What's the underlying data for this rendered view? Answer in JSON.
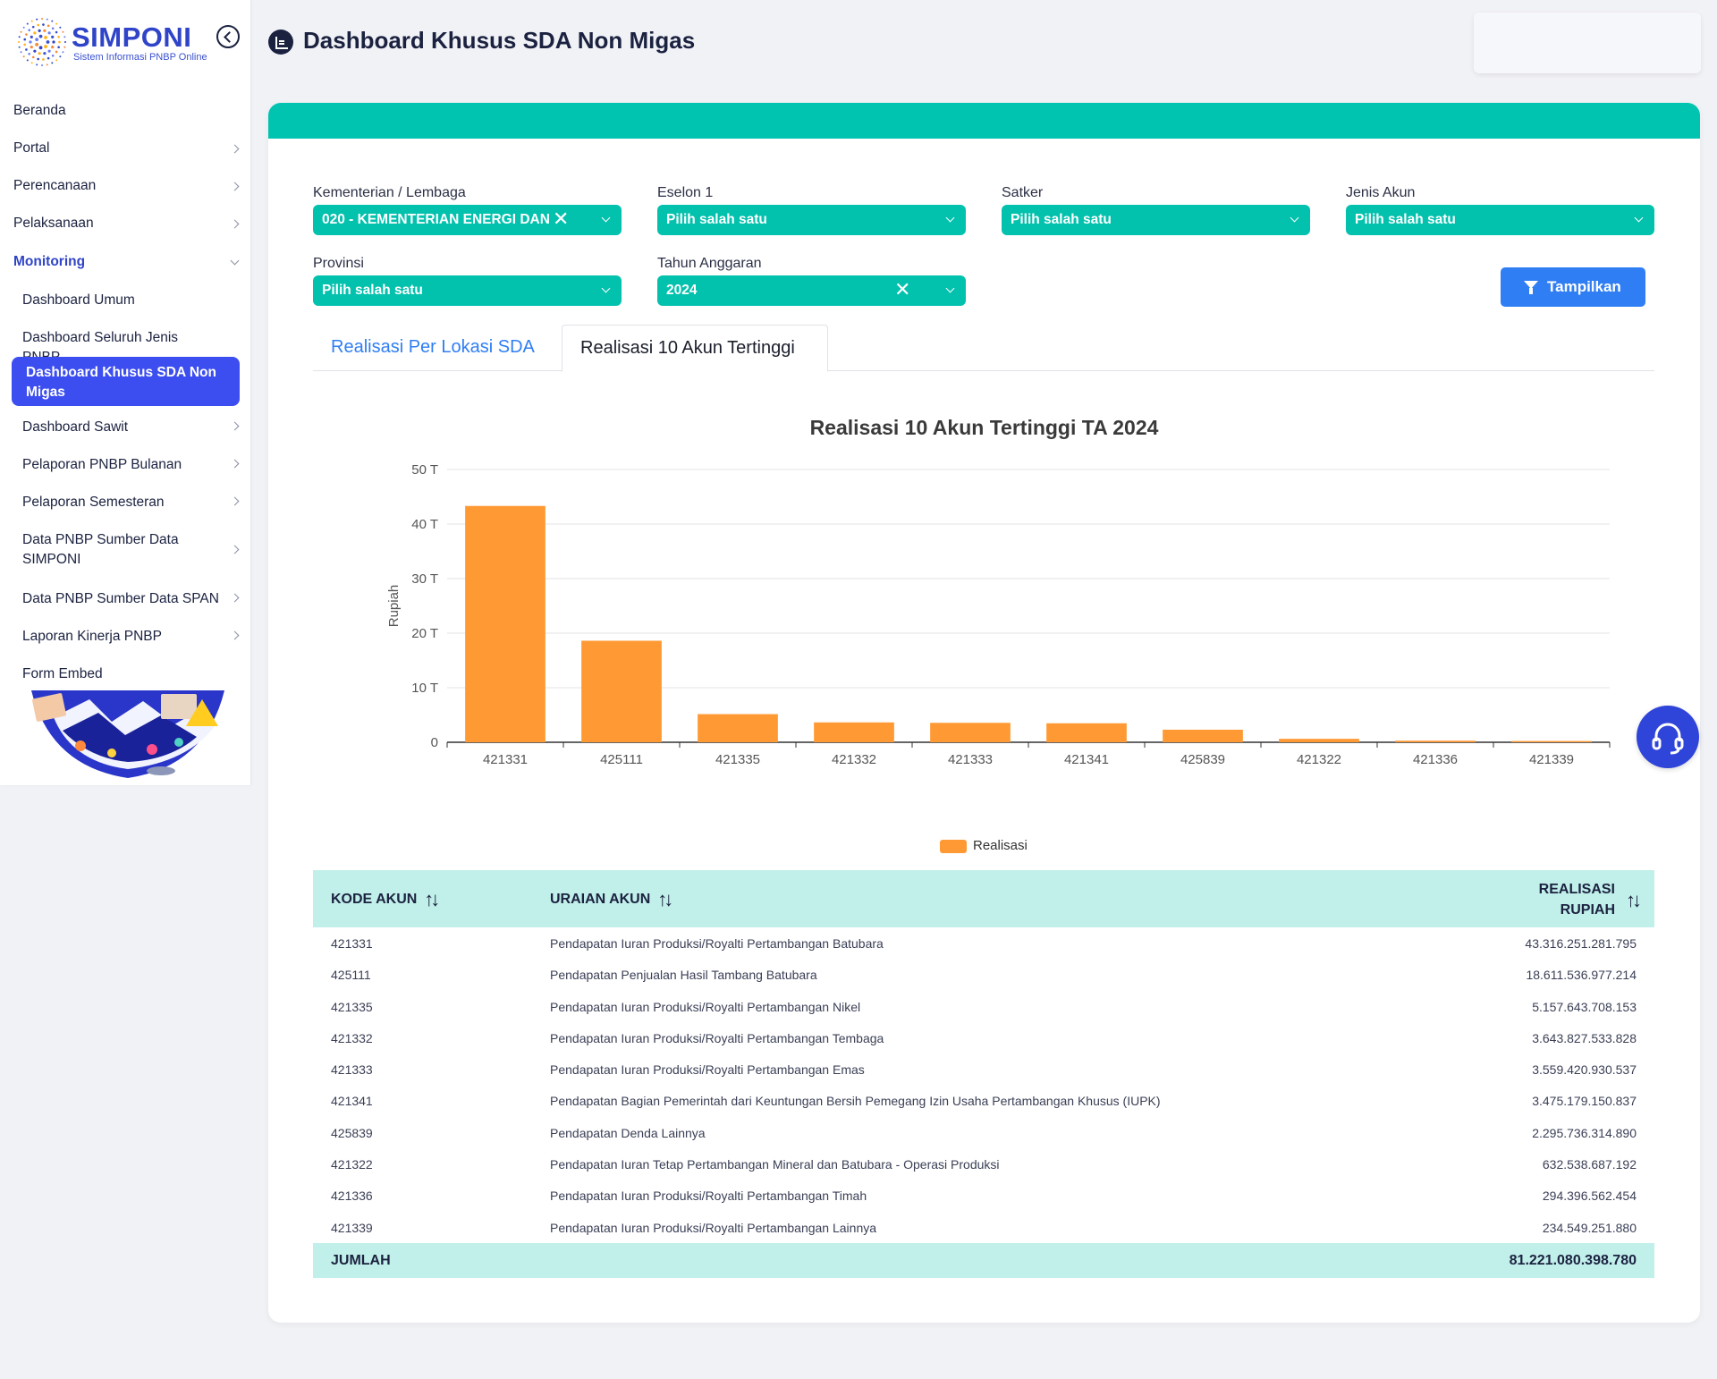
{
  "sidebar": {
    "logo_title": "SIMPONI",
    "logo_subtitle": "Sistem Informasi PNBP Online",
    "items": [
      {
        "label": "Beranda"
      },
      {
        "label": "Portal"
      },
      {
        "label": "Perencanaan"
      },
      {
        "label": "Pelaksanaan"
      },
      {
        "label": "Monitoring"
      },
      {
        "label": "Dashboard Umum"
      },
      {
        "label": "Dashboard Seluruh Jenis PNBP"
      },
      {
        "label": "Dashboard Khusus SDA Non Migas"
      },
      {
        "label": "Dashboard Sawit"
      },
      {
        "label": "Pelaporan PNBP Bulanan"
      },
      {
        "label": "Pelaporan Semesteran"
      },
      {
        "label": "Data PNBP Sumber Data SIMPONI"
      },
      {
        "label": "Data PNBP Sumber Data SPAN"
      },
      {
        "label": "Laporan Kinerja PNBP"
      },
      {
        "label": "Form Embed"
      }
    ]
  },
  "header": {
    "title": "Dashboard Khusus SDA Non Migas"
  },
  "filters": {
    "kementerian": {
      "label": "Kementerian / Lembaga",
      "value": "020 - KEMENTERIAN ENERGI DAN"
    },
    "eselon": {
      "label": "Eselon 1",
      "value": "Pilih salah satu"
    },
    "satker": {
      "label": "Satker",
      "value": "Pilih salah satu"
    },
    "jenis_akun": {
      "label": "Jenis Akun",
      "value": "Pilih salah satu"
    },
    "provinsi": {
      "label": "Provinsi",
      "value": "Pilih salah satu"
    },
    "tahun": {
      "label": "Tahun Anggaran",
      "value": "2024"
    },
    "submit_label": "Tampilkan"
  },
  "tabs": [
    {
      "label": "Realisasi Per Lokasi SDA",
      "active": false
    },
    {
      "label": "Realisasi 10 Akun Tertinggi",
      "active": true
    }
  ],
  "chart_data": {
    "type": "bar",
    "title": "Realisasi 10 Akun Tertinggi TA 2024",
    "xlabel": "",
    "ylabel": "Rupiah",
    "ylim": [
      0,
      50
    ],
    "ytick_values": [
      0,
      10,
      20,
      30,
      40,
      50
    ],
    "ytick_labels": [
      "0",
      "10 T",
      "20 T",
      "30 T",
      "40 T",
      "50 T"
    ],
    "categories": [
      "421331",
      "425111",
      "421335",
      "421332",
      "421333",
      "421341",
      "425839",
      "421322",
      "421336",
      "421339"
    ],
    "series": [
      {
        "name": "Realisasi",
        "values": [
          43.32,
          18.61,
          5.16,
          3.64,
          3.56,
          3.48,
          2.3,
          0.63,
          0.29,
          0.23
        ]
      }
    ],
    "grid": true,
    "legend": "bottom-center",
    "color": "#ff9933"
  },
  "table": {
    "headers": {
      "kode": "KODE AKUN",
      "uraian": "URAIAN AKUN",
      "realisasi_1": "REALISASI",
      "realisasi_2": "RUPIAH"
    },
    "rows": [
      {
        "kode": "421331",
        "uraian": "Pendapatan Iuran Produksi/Royalti Pertambangan Batubara",
        "realisasi": "43.316.251.281.795"
      },
      {
        "kode": "425111",
        "uraian": "Pendapatan Penjualan Hasil Tambang Batubara",
        "realisasi": "18.611.536.977.214"
      },
      {
        "kode": "421335",
        "uraian": "Pendapatan Iuran Produksi/Royalti Pertambangan Nikel",
        "realisasi": "5.157.643.708.153"
      },
      {
        "kode": "421332",
        "uraian": "Pendapatan Iuran Produksi/Royalti Pertambangan Tembaga",
        "realisasi": "3.643.827.533.828"
      },
      {
        "kode": "421333",
        "uraian": "Pendapatan Iuran Produksi/Royalti Pertambangan Emas",
        "realisasi": "3.559.420.930.537"
      },
      {
        "kode": "421341",
        "uraian": "Pendapatan Bagian Pemerintah dari Keuntungan Bersih Pemegang Izin Usaha Pertambangan Khusus (IUPK)",
        "realisasi": "3.475.179.150.837"
      },
      {
        "kode": "425839",
        "uraian": "Pendapatan Denda Lainnya",
        "realisasi": "2.295.736.314.890"
      },
      {
        "kode": "421322",
        "uraian": "Pendapatan Iuran Tetap Pertambangan Mineral dan Batubara - Operasi Produksi",
        "realisasi": "632.538.687.192"
      },
      {
        "kode": "421336",
        "uraian": "Pendapatan Iuran Produksi/Royalti Pertambangan Timah",
        "realisasi": "294.396.562.454"
      },
      {
        "kode": "421339",
        "uraian": "Pendapatan Iuran Produksi/Royalti Pertambangan Lainnya",
        "realisasi": "234.549.251.880"
      }
    ],
    "footer": {
      "label": "JUMLAH",
      "total": "81.221.080.398.780"
    }
  },
  "colors": {
    "accent": "#01c4b0",
    "primary": "#2f44c8",
    "button": "#2f7ef3",
    "bar": "#ff9933"
  },
  "icons": {
    "collapse": "chevron-left-icon",
    "header": "dashboard-icon",
    "filter": "filter-icon",
    "help": "headset-icon",
    "sort": "sort-icon"
  }
}
